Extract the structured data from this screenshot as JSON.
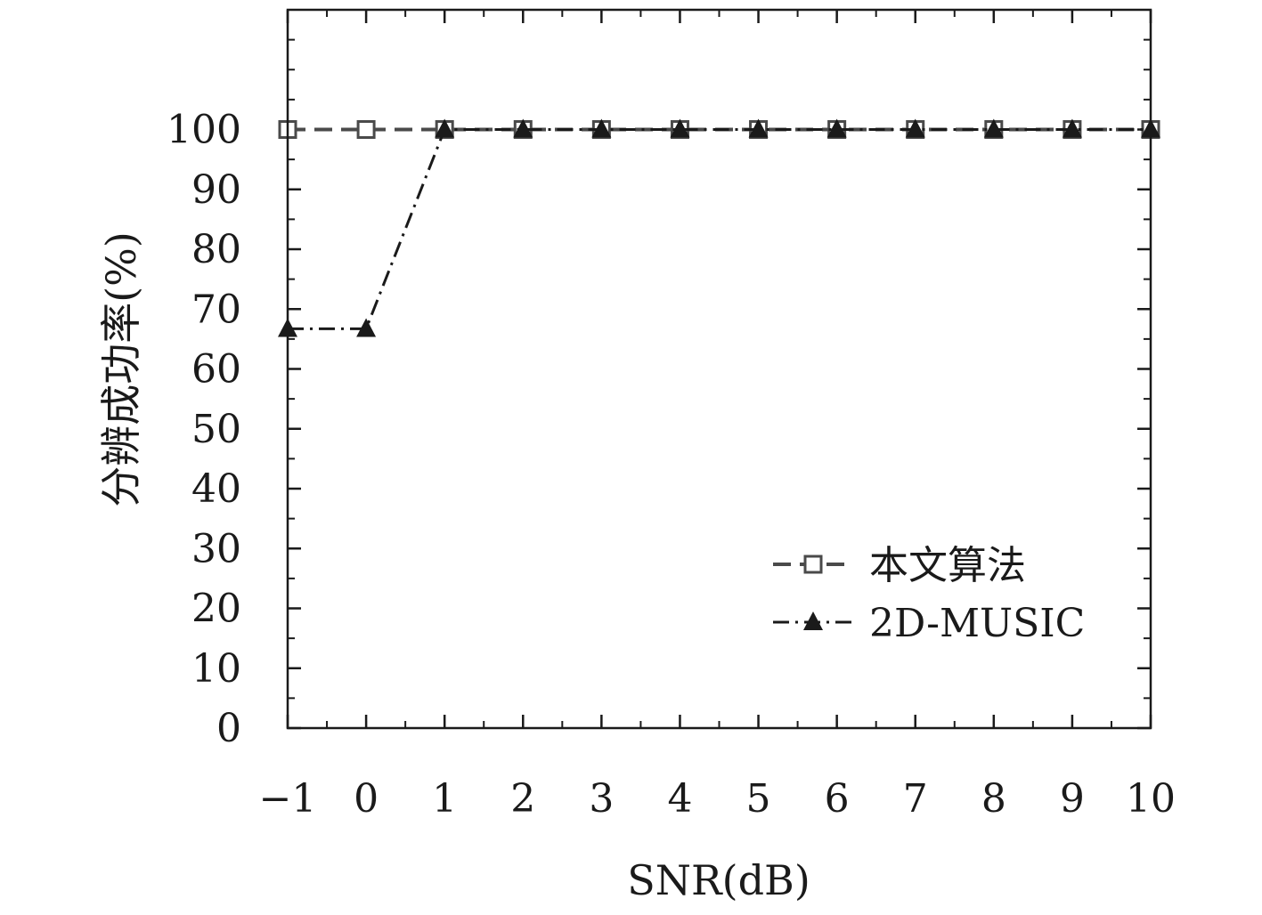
{
  "chart_data": {
    "type": "line",
    "x": [
      -1,
      0,
      1,
      2,
      3,
      4,
      5,
      6,
      7,
      8,
      9,
      10
    ],
    "x_tick_labels": [
      "−1",
      "0",
      "1",
      "2",
      "3",
      "4",
      "5",
      "6",
      "7",
      "8",
      "9",
      "10"
    ],
    "y_ticks": [
      0,
      10,
      20,
      30,
      40,
      50,
      60,
      70,
      80,
      90,
      100
    ],
    "xlim": [
      -1,
      10
    ],
    "ylim": [
      0,
      120
    ],
    "xlabel": "SNR(dB)",
    "ylabel": "分辨成功率(%)",
    "grid": false,
    "legend_position": "bottom-right",
    "series": [
      {
        "name": "本文算法",
        "values": [
          100,
          100,
          100,
          100,
          100,
          100,
          100,
          100,
          100,
          100,
          100,
          100
        ],
        "marker": "square-open",
        "line_style": "dashed",
        "color": "#4a4a4a"
      },
      {
        "name": "2D-MUSIC",
        "values": [
          66.7,
          66.7,
          100,
          100,
          100,
          100,
          100,
          100,
          100,
          100,
          100,
          100
        ],
        "marker": "triangle-filled",
        "line_style": "dash-dot",
        "color": "#1a1a1a"
      }
    ]
  }
}
